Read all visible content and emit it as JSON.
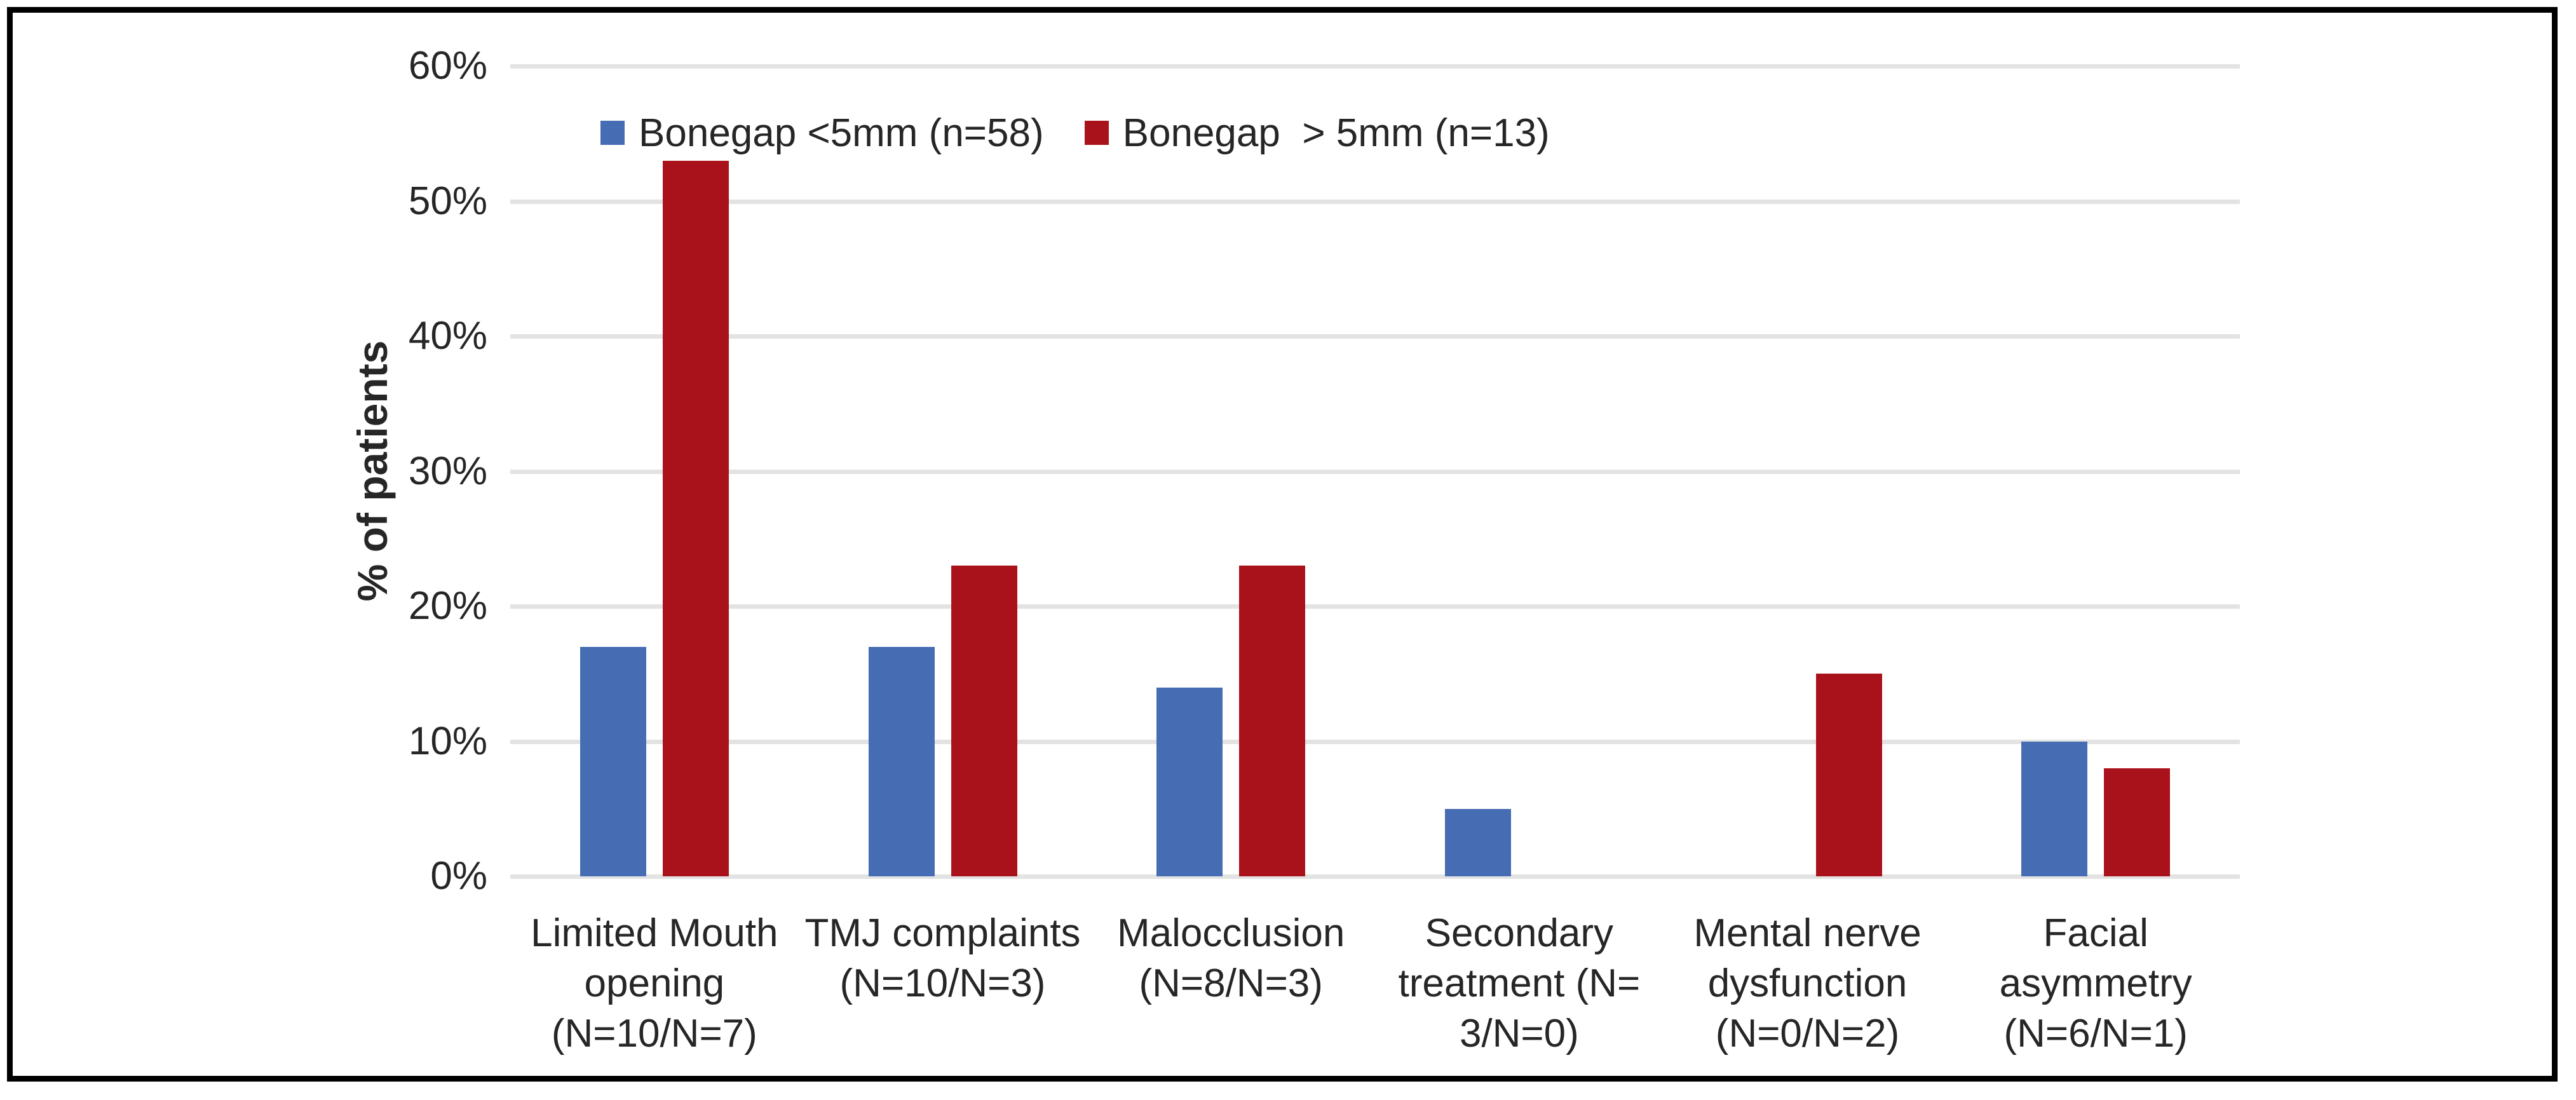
{
  "figure": {
    "background": "#FFFFFF",
    "border_color": "#000000"
  },
  "chart_data": {
    "type": "bar",
    "title": "",
    "xlabel": "",
    "ylabel": "% of patients",
    "ylim": [
      0,
      60
    ],
    "ytick_step": 10,
    "yticks": [
      "60%",
      "50%",
      "40%",
      "30%",
      "20%",
      "10%",
      "0%"
    ],
    "grid": true,
    "gridline_color": "#E3E3E3",
    "text_color": "#262626",
    "legend_position": "top-left-inside",
    "categories": [
      "Limited Mouth\nopening\n(N=10/N=7)",
      "TMJ complaints\n(N=10/N=3)",
      "Malocclusion\n(N=8/N=3)",
      "Secondary\ntreatment (N=\n3/N=0)",
      "Mental nerve\ndysfunction\n(N=0/N=2)",
      "Facial\nasymmetry\n(N=6/N=1)"
    ],
    "series": [
      {
        "name": "Bonegap <5mm (n=58)",
        "color": "#466CB4",
        "values": [
          17,
          17,
          14,
          5,
          0,
          10
        ]
      },
      {
        "name": "Bonegap  > 5mm (n=13)",
        "color": "#A9121A",
        "values": [
          53,
          23,
          23,
          0,
          15,
          8
        ]
      }
    ]
  }
}
